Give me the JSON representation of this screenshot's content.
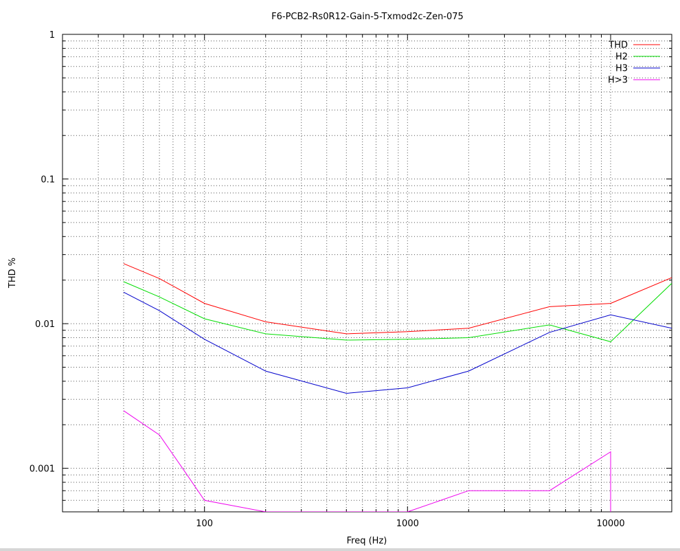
{
  "chart_data": {
    "type": "line",
    "title": "F6-PCB2-Rs0R12-Gain-5-Txmod2c-Zen-075",
    "xlabel": "Freq (Hz)",
    "ylabel": "THD %",
    "xscale": "log",
    "yscale": "log",
    "xlim": [
      20,
      20000
    ],
    "ylim": [
      0.0005,
      1
    ],
    "grid": true,
    "legend_position": "top-right",
    "x_tick_labels": [
      "100",
      "1000",
      "10000"
    ],
    "y_tick_labels": [
      "0.001",
      "0.01",
      "0.1",
      "1"
    ],
    "series": [
      {
        "name": "THD",
        "color": "#ff0000",
        "x": [
          40,
          60,
          100,
          200,
          500,
          1000,
          2000,
          5000,
          10000,
          20000
        ],
        "y": [
          0.026,
          0.0205,
          0.0138,
          0.0103,
          0.0085,
          0.0088,
          0.0093,
          0.0131,
          0.0138,
          0.0208
        ]
      },
      {
        "name": "H2",
        "color": "#00dd00",
        "x": [
          40,
          60,
          100,
          200,
          500,
          1000,
          2000,
          5000,
          10000,
          20000
        ],
        "y": [
          0.0195,
          0.0153,
          0.0108,
          0.0085,
          0.0077,
          0.0078,
          0.008,
          0.0098,
          0.0075,
          0.019
        ]
      },
      {
        "name": "H3",
        "color": "#0000cc",
        "x": [
          40,
          60,
          100,
          200,
          500,
          1000,
          2000,
          5000,
          10000,
          20000
        ],
        "y": [
          0.0165,
          0.0123,
          0.0078,
          0.0047,
          0.0033,
          0.0036,
          0.0047,
          0.0087,
          0.0115,
          0.0093
        ]
      },
      {
        "name": "H>3",
        "color": "#ee00ee",
        "x": [
          40,
          60,
          80,
          100,
          200,
          1000,
          2000,
          5000,
          10000,
          10000
        ],
        "y": [
          0.0025,
          0.0017,
          0.00095,
          0.0006,
          0.0005,
          0.0005,
          0.0007,
          0.0007,
          0.0013,
          0.0005
        ]
      }
    ]
  }
}
